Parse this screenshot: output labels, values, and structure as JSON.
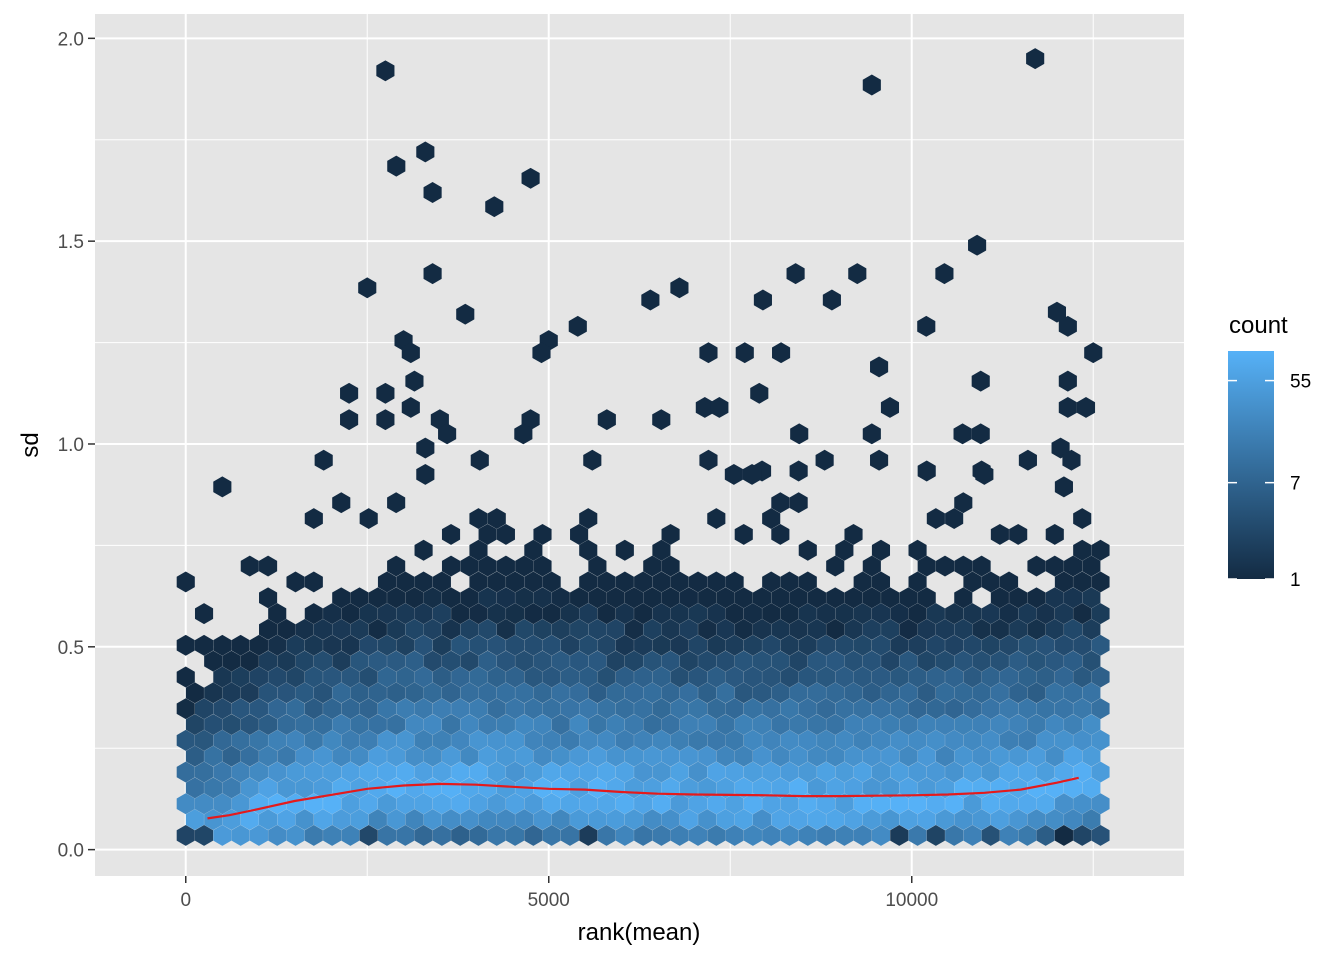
{
  "chart_data": {
    "type": "hexbin",
    "xlabel": "rank(mean)",
    "ylabel": "sd",
    "xlim": [
      -1250,
      13750
    ],
    "ylim": [
      -0.065,
      2.06
    ],
    "x_ticks": [
      0,
      5000,
      10000
    ],
    "x_tick_labels": [
      "0",
      "5000",
      "10000"
    ],
    "y_ticks": [
      0.0,
      0.5,
      1.0,
      1.5,
      2.0
    ],
    "y_tick_labels": [
      "0.0",
      "0.5",
      "1.0",
      "1.5",
      "2.0"
    ],
    "grid": true,
    "panel_background": "#e5e5e5",
    "grid_color": "#ffffff",
    "hex_bins_x": 50,
    "color_low": "#132b43",
    "color_high": "#56b1f7",
    "color_scale": "log",
    "count_range": [
      1,
      100
    ],
    "legend": {
      "title": "count",
      "position": "right",
      "labels": [
        "55",
        "7",
        "1"
      ],
      "values": [
        55,
        7,
        1
      ]
    },
    "trend_line": {
      "color": "#e41a1c",
      "x": [
        300,
        600,
        1000,
        1500,
        2000,
        2500,
        3000,
        3500,
        4000,
        4500,
        5000,
        5500,
        6000,
        6500,
        7000,
        7500,
        8000,
        8500,
        9000,
        9500,
        10000,
        10500,
        11000,
        11500,
        12000,
        12300
      ],
      "y": [
        0.077,
        0.085,
        0.1,
        0.12,
        0.135,
        0.15,
        0.158,
        0.162,
        0.16,
        0.155,
        0.15,
        0.148,
        0.142,
        0.138,
        0.136,
        0.135,
        0.134,
        0.132,
        0.132,
        0.133,
        0.134,
        0.136,
        0.14,
        0.148,
        0.165,
        0.177
      ]
    },
    "outliers": [
      [
        2750,
        1.92
      ],
      [
        11700,
        1.95
      ],
      [
        9450,
        1.885
      ],
      [
        3300,
        1.72
      ],
      [
        2900,
        1.685
      ],
      [
        4750,
        1.655
      ],
      [
        3400,
        1.62
      ],
      [
        4250,
        1.585
      ],
      [
        10900,
        1.49
      ],
      [
        3400,
        1.42
      ],
      [
        6800,
        1.385
      ],
      [
        2500,
        1.385
      ],
      [
        8400,
        1.42
      ],
      [
        9250,
        1.42
      ],
      [
        10450,
        1.42
      ],
      [
        3850,
        1.32
      ],
      [
        6400,
        1.355
      ],
      [
        7950,
        1.355
      ],
      [
        8900,
        1.355
      ],
      [
        10200,
        1.29
      ],
      [
        5400,
        1.29
      ],
      [
        12000,
        1.325
      ],
      [
        12150,
        1.29
      ],
      [
        3000,
        1.255
      ],
      [
        5000,
        1.255
      ],
      [
        4900,
        1.225
      ],
      [
        7200,
        1.225
      ],
      [
        7700,
        1.225
      ],
      [
        8200,
        1.225
      ],
      [
        12500,
        1.225
      ],
      [
        9550,
        1.19
      ],
      [
        3100,
        1.225
      ],
      [
        2750,
        1.125
      ],
      [
        3150,
        1.155
      ],
      [
        10950,
        1.155
      ],
      [
        12150,
        1.155
      ],
      [
        7900,
        1.125
      ],
      [
        2250,
        1.125
      ],
      [
        3100,
        1.09
      ],
      [
        9700,
        1.09
      ],
      [
        7150,
        1.09
      ],
      [
        7350,
        1.09
      ],
      [
        12150,
        1.09
      ],
      [
        12400,
        1.09
      ],
      [
        2250,
        1.06
      ],
      [
        2750,
        1.06
      ],
      [
        3500,
        1.06
      ],
      [
        4750,
        1.06
      ],
      [
        5800,
        1.06
      ],
      [
        6550,
        1.06
      ],
      [
        9450,
        1.025
      ],
      [
        3600,
        1.025
      ],
      [
        4650,
        1.025
      ],
      [
        8450,
        1.025
      ],
      [
        10700,
        1.025
      ],
      [
        10950,
        1.025
      ],
      [
        3300,
        0.99
      ],
      [
        12050,
        0.99
      ],
      [
        9550,
        0.96
      ],
      [
        11600,
        0.96
      ],
      [
        12200,
        0.96
      ],
      [
        1900,
        0.96
      ],
      [
        4050,
        0.96
      ],
      [
        5600,
        0.96
      ],
      [
        7200,
        0.96
      ],
      [
        8800,
        0.96
      ],
      [
        11000,
        0.925
      ],
      [
        7550,
        0.925
      ],
      [
        7800,
        0.925
      ],
      [
        3300,
        0.925
      ]
    ]
  }
}
